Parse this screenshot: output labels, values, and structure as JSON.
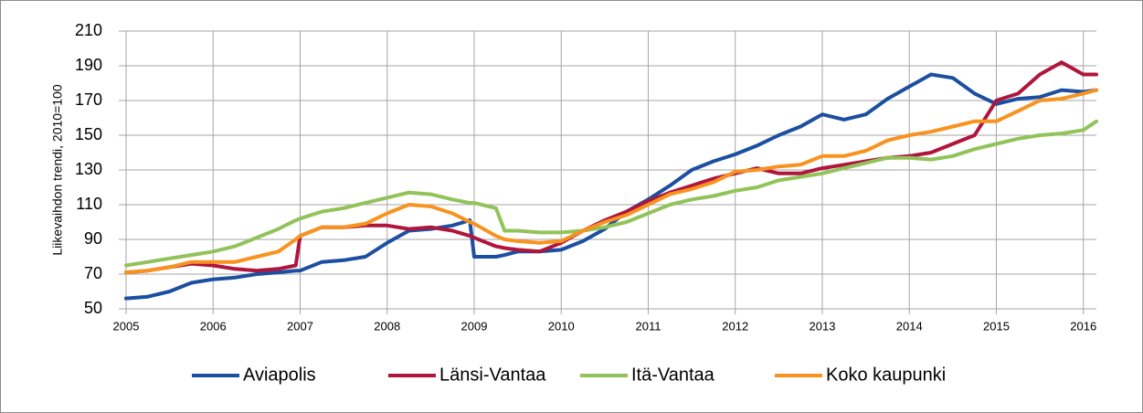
{
  "chart_data": {
    "type": "line",
    "ylabel": "Liikevaihdon trendi, 2010=100",
    "x": [
      2005,
      2005.25,
      2005.5,
      2005.75,
      2006,
      2006.25,
      2006.5,
      2006.75,
      2006.95,
      2007,
      2007.25,
      2007.5,
      2007.75,
      2008,
      2008.25,
      2008.5,
      2008.75,
      2008.95,
      2009,
      2009.25,
      2009.35,
      2009.5,
      2009.75,
      2010,
      2010.25,
      2010.5,
      2010.75,
      2011,
      2011.25,
      2011.5,
      2011.75,
      2012,
      2012.25,
      2012.5,
      2012.75,
      2013,
      2013.25,
      2013.5,
      2013.75,
      2014,
      2014.25,
      2014.5,
      2014.75,
      2015,
      2015.25,
      2015.5,
      2015.75,
      2016,
      2016.15
    ],
    "series": [
      {
        "name": "Aviapolis",
        "color": "#1c4fa0",
        "values": [
          56,
          57,
          60,
          65,
          67,
          68,
          70,
          71,
          72,
          72,
          77,
          78,
          80,
          88,
          95,
          96,
          98,
          101,
          80,
          80,
          81,
          83,
          83,
          84,
          89,
          96,
          106,
          113,
          121,
          130,
          135,
          139,
          144,
          150,
          155,
          162,
          159,
          162,
          171,
          178,
          185,
          183,
          174,
          168,
          171,
          172,
          176,
          175,
          176
        ]
      },
      {
        "name": "Länsi-Vantaa",
        "color": "#b0153c",
        "values": [
          71,
          72,
          74,
          76,
          75,
          73,
          72,
          73,
          75,
          92,
          97,
          97,
          98,
          98,
          96,
          97,
          95,
          92,
          91,
          86,
          85,
          84,
          83,
          88,
          95,
          101,
          106,
          112,
          117,
          121,
          125,
          128,
          131,
          128,
          128,
          131,
          133,
          135,
          137,
          138,
          140,
          145,
          150,
          170,
          174,
          185,
          192,
          185,
          185
        ]
      },
      {
        "name": "Itä-Vantaa",
        "color": "#92c35a",
        "values": [
          75,
          77,
          79,
          81,
          83,
          86,
          91,
          96,
          101,
          102,
          106,
          108,
          111,
          114,
          117,
          116,
          113,
          111,
          111,
          108,
          95,
          95,
          94,
          94,
          95,
          97,
          100,
          105,
          110,
          113,
          115,
          118,
          120,
          124,
          126,
          128,
          131,
          134,
          137,
          137,
          136,
          138,
          142,
          145,
          148,
          150,
          151,
          153,
          158
        ]
      },
      {
        "name": "Koko kaupunki",
        "color": "#f7931e",
        "values": [
          71,
          72,
          74,
          77,
          77,
          77,
          80,
          83,
          90,
          92,
          97,
          97,
          99,
          105,
          110,
          109,
          105,
          100,
          99,
          92,
          90,
          89,
          88,
          89,
          95,
          100,
          104,
          110,
          116,
          119,
          123,
          129,
          130,
          132,
          133,
          138,
          138,
          141,
          147,
          150,
          152,
          155,
          158,
          158,
          164,
          170,
          171,
          174,
          176
        ]
      }
    ],
    "xlim": [
      2005,
      2016.15
    ],
    "xticks": [
      2005,
      2006,
      2007,
      2008,
      2009,
      2010,
      2011,
      2012,
      2013,
      2014,
      2015,
      2016
    ],
    "ylim": [
      50,
      210
    ],
    "yticks": [
      50,
      70,
      90,
      110,
      130,
      150,
      170,
      190,
      210
    ],
    "grid": true,
    "legend": "bottom"
  }
}
